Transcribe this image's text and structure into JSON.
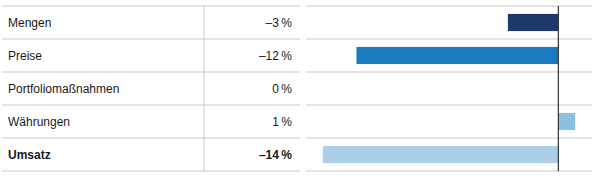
{
  "chart_data": {
    "type": "bar",
    "orientation": "horizontal",
    "categories": [
      "Mengen",
      "Preise",
      "Portfoliomaßnahmen",
      "Währungen",
      "Umsatz"
    ],
    "values": [
      -3,
      -12,
      0,
      1,
      -14
    ],
    "value_labels": [
      "–3 %",
      "–12 %",
      "0 %",
      "1 %",
      "–14 %"
    ],
    "colors": [
      "#1b3a6b",
      "#1a7bbf",
      "#1a7bbf",
      "#8dc0e0",
      "#aacfe8"
    ],
    "xlim": [
      -15,
      2
    ],
    "data_labels": true,
    "tick_labels": false,
    "grid": false
  }
}
